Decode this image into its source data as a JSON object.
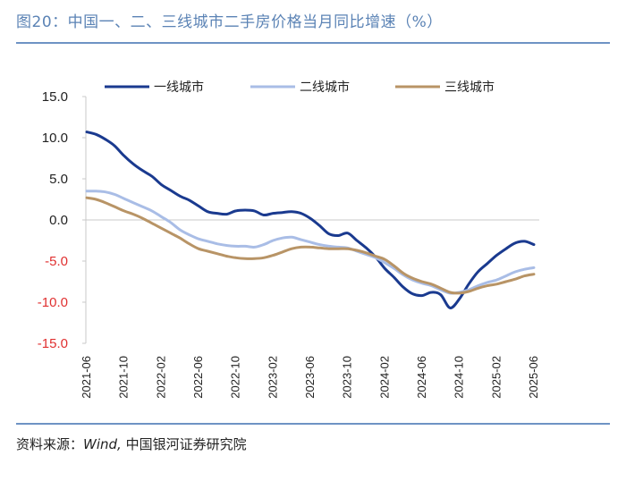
{
  "figure": {
    "title": "图20：中国一、二、三线城市二手房价格当月同比增速（%）",
    "source": "资料来源：Wind，中国银河证券研究院",
    "source_parts": [
      "资料来源：",
      "Wind",
      ", ",
      "中国银河证券研究院"
    ]
  },
  "colors": {
    "tier1": "#1a3a8f",
    "tier2": "#a9bde6",
    "tier3": "#b89466",
    "negative_tick": "#e03030",
    "positive_tick": "#222222",
    "axis": "#c8c8c8"
  },
  "chart_data": {
    "type": "line",
    "title": "中国一、二、三线城市二手房价格当月同比增速（%）",
    "xlabel": "",
    "ylabel": "",
    "ylim": [
      -15,
      15
    ],
    "yticks": [
      "15.0",
      "10.0",
      "5.0",
      "0.0",
      "-5.0",
      "-10.0",
      "-15.0"
    ],
    "ytick_values": [
      15,
      10,
      5,
      0,
      -5,
      -10,
      -15
    ],
    "x_start": "2021-06",
    "x_count": 49,
    "xticks": [
      "2021-06",
      "2021-10",
      "2022-02",
      "2022-06",
      "2022-10",
      "2023-02",
      "2023-06",
      "2023-10",
      "2024-02",
      "2024-06",
      "2024-10",
      "2025-02",
      "2025-06"
    ],
    "series": [
      {
        "name": "一线城市",
        "key": "tier1",
        "values": [
          10.7,
          10.4,
          9.8,
          9.0,
          7.8,
          6.8,
          6.0,
          5.3,
          4.3,
          3.6,
          2.9,
          2.4,
          1.7,
          1.0,
          0.8,
          0.7,
          1.1,
          1.2,
          1.1,
          0.6,
          0.8,
          0.9,
          1.0,
          0.8,
          0.2,
          -0.7,
          -1.7,
          -1.9,
          -1.6,
          -2.5,
          -3.4,
          -4.5,
          -5.9,
          -7.0,
          -8.2,
          -9.0,
          -9.2,
          -8.8,
          -9.1,
          -10.7,
          -9.6,
          -7.8,
          -6.3,
          -5.3,
          -4.3,
          -3.5,
          -2.8,
          -2.6,
          -3.0
        ]
      },
      {
        "name": "二线城市",
        "key": "tier2",
        "values": [
          3.5,
          3.5,
          3.4,
          3.1,
          2.6,
          2.1,
          1.6,
          1.1,
          0.4,
          -0.3,
          -1.2,
          -1.8,
          -2.3,
          -2.6,
          -2.9,
          -3.1,
          -3.2,
          -3.2,
          -3.3,
          -3.0,
          -2.5,
          -2.2,
          -2.1,
          -2.4,
          -2.7,
          -3.0,
          -3.2,
          -3.3,
          -3.4,
          -3.8,
          -4.2,
          -4.6,
          -5.2,
          -5.9,
          -6.7,
          -7.3,
          -7.7,
          -8.0,
          -8.5,
          -8.9,
          -8.8,
          -8.5,
          -8.0,
          -7.6,
          -7.3,
          -6.8,
          -6.3,
          -6.0,
          -5.8
        ]
      },
      {
        "name": "三线城市",
        "key": "tier3",
        "values": [
          2.7,
          2.5,
          2.1,
          1.6,
          1.1,
          0.7,
          0.2,
          -0.4,
          -1.0,
          -1.6,
          -2.2,
          -2.9,
          -3.5,
          -3.8,
          -4.1,
          -4.4,
          -4.6,
          -4.7,
          -4.7,
          -4.6,
          -4.3,
          -3.9,
          -3.5,
          -3.3,
          -3.3,
          -3.4,
          -3.5,
          -3.5,
          -3.5,
          -3.7,
          -4.0,
          -4.4,
          -4.8,
          -5.6,
          -6.5,
          -7.1,
          -7.5,
          -7.8,
          -8.3,
          -8.8,
          -8.9,
          -8.7,
          -8.3,
          -8.0,
          -7.8,
          -7.5,
          -7.2,
          -6.8,
          -6.6
        ]
      }
    ]
  }
}
